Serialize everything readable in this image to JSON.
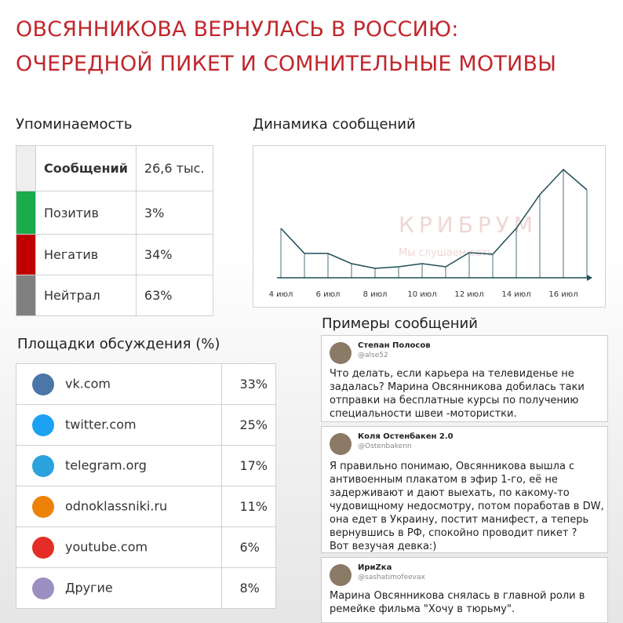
{
  "header": {
    "title_lines": [
      "ОВСЯННИКОВА ВЕРНУЛАСЬ В РОССИЮ:",
      "ОЧЕРЕДНОЙ ПИКЕТ И СОМНИТЕЛЬНЫЕ МОТИВЫ"
    ]
  },
  "mentions": {
    "title": "Упоминаемость",
    "rows": [
      [
        "Сообщений",
        "26,6 тыс."
      ],
      [
        "Позитив",
        "3%"
      ],
      [
        "Негатив",
        "34%"
      ],
      [
        "Нейтрал",
        "63%"
      ]
    ]
  },
  "chart_data": {
    "type": "line",
    "title": "Динамика сообщений",
    "categories": [
      "4 июл",
      null,
      "6 июл",
      null,
      "8 июл",
      null,
      "10 июл",
      null,
      "12 июл",
      null,
      "14 июл",
      null,
      "16 июл",
      null
    ],
    "values": [
      63,
      31,
      31,
      18,
      12,
      14,
      18,
      14,
      32,
      30,
      63,
      106,
      138,
      112
    ],
    "color": "#1f4e5a",
    "ylim": [
      0,
      150
    ],
    "watermark": [
      "КРИБРУМ",
      "Мы слушаем сеть"
    ]
  },
  "platforms": {
    "title": "Площадки обсуждения (%)",
    "rows": [
      [
        "vk.com",
        "33%"
      ],
      [
        "twitter.com",
        "25%"
      ],
      [
        "telegram.org",
        "17%"
      ],
      [
        "odnoklassniki.ru",
        "11%"
      ],
      [
        "youtube.com",
        "6%"
      ],
      [
        "Другие",
        "8%"
      ]
    ]
  },
  "messages": {
    "title": "Примеры сообщений",
    "items": [
      {
        "author": "Степан Полосов",
        "handle": "@alse52",
        "lines": [
          "Что делать, если карьера на телевиденье не",
          "задалась? Марина Овсянникова добилась таки",
          "отправки на бесплатные курсы по получению",
          "специальности швеи -мотористки."
        ]
      },
      {
        "author": "Коля Остенбакен 2.0",
        "handle": "@Ostenbakenn",
        "lines": [
          "Я правильно понимаю, Овсянникова вышла с",
          "антивоенным плакатом в эфир 1-го, её не",
          "задерживают и дают выехать, по какому-то",
          "чудовищному недосмотру, потом поработав в DW,",
          "она едет в Украину, постит манифест, а теперь",
          "вернувшись в РФ,  спокойно проводит пикет ?",
          "Вот везучая девка:)"
        ]
      },
      {
        "author": "ИриZка",
        "handle": "@sashatimofeevax",
        "lines": [
          "Марина Овсянникова снялась в главной роли в",
          "ремейке  фильма \"Хочу в тюрьму\"."
        ]
      }
    ]
  }
}
